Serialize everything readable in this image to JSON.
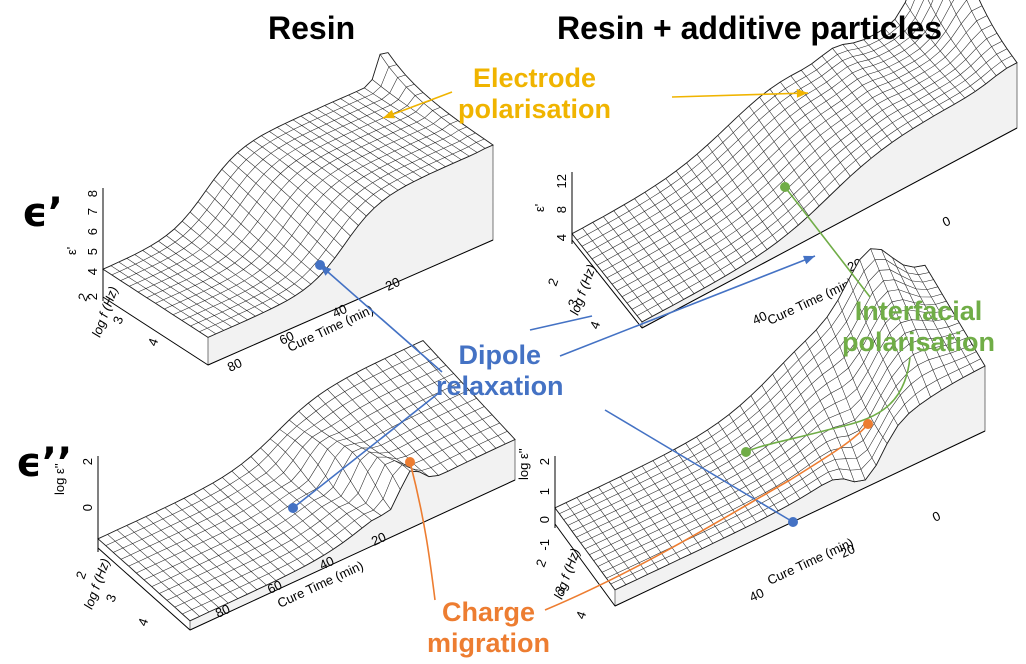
{
  "headers": {
    "resin": "Resin",
    "additive": "Resin + additive particles"
  },
  "row_labels": {
    "real": "ϵ’",
    "imag": "ϵ’’"
  },
  "annotations": {
    "electrode": [
      "Electrode",
      "polarisation"
    ],
    "interfacial": [
      "Interfacial",
      "polarisation"
    ],
    "dipole": [
      "Dipole",
      "relaxation"
    ],
    "charge": [
      "Charge",
      "migration"
    ]
  },
  "colors": {
    "electrode": "#f0b400",
    "interfacial": "#70ad47",
    "dipole": "#4472c4",
    "charge": "#ed7d31",
    "mesh": "#222222"
  },
  "chart_data": [
    {
      "type": "surface3d",
      "panel": "Resin ϵ'",
      "xlabel": "Cure Time (min)",
      "ylabel": "log f (Hz)",
      "zlabel": "ε'",
      "x_ticks": [
        "80",
        "60",
        "40",
        "20"
      ],
      "y_ticks": [
        "2",
        "3",
        "4"
      ],
      "z_ticks": [
        "2",
        "4",
        "5",
        "6",
        "7",
        "8"
      ]
    },
    {
      "type": "surface3d",
      "panel": "Resin + additive particles ϵ'",
      "xlabel": "Cure Time (min)",
      "ylabel": "log f (Hz)",
      "zlabel": "ε'",
      "x_ticks": [
        "40",
        "20",
        "0"
      ],
      "y_ticks": [
        "2",
        "3",
        "4"
      ],
      "z_ticks": [
        "4",
        "8",
        "12"
      ]
    },
    {
      "type": "surface3d",
      "panel": "Resin ϵ''",
      "xlabel": "Cure Time (min)",
      "ylabel": "log f (Hz)",
      "zlabel": "log ε''",
      "x_ticks": [
        "80",
        "60",
        "40",
        "20"
      ],
      "y_ticks": [
        "2",
        "3",
        "4"
      ],
      "z_ticks": [
        "0",
        "2"
      ]
    },
    {
      "type": "surface3d",
      "panel": "Resin + additive particles ϵ''",
      "xlabel": "Cure Time (min)",
      "ylabel": "log f (Hz)",
      "zlabel": "log ε''",
      "x_ticks": [
        "40",
        "20",
        "0"
      ],
      "y_ticks": [
        "2",
        "3",
        "4"
      ],
      "z_ticks": [
        "-1",
        "0",
        "1",
        "2"
      ]
    }
  ]
}
